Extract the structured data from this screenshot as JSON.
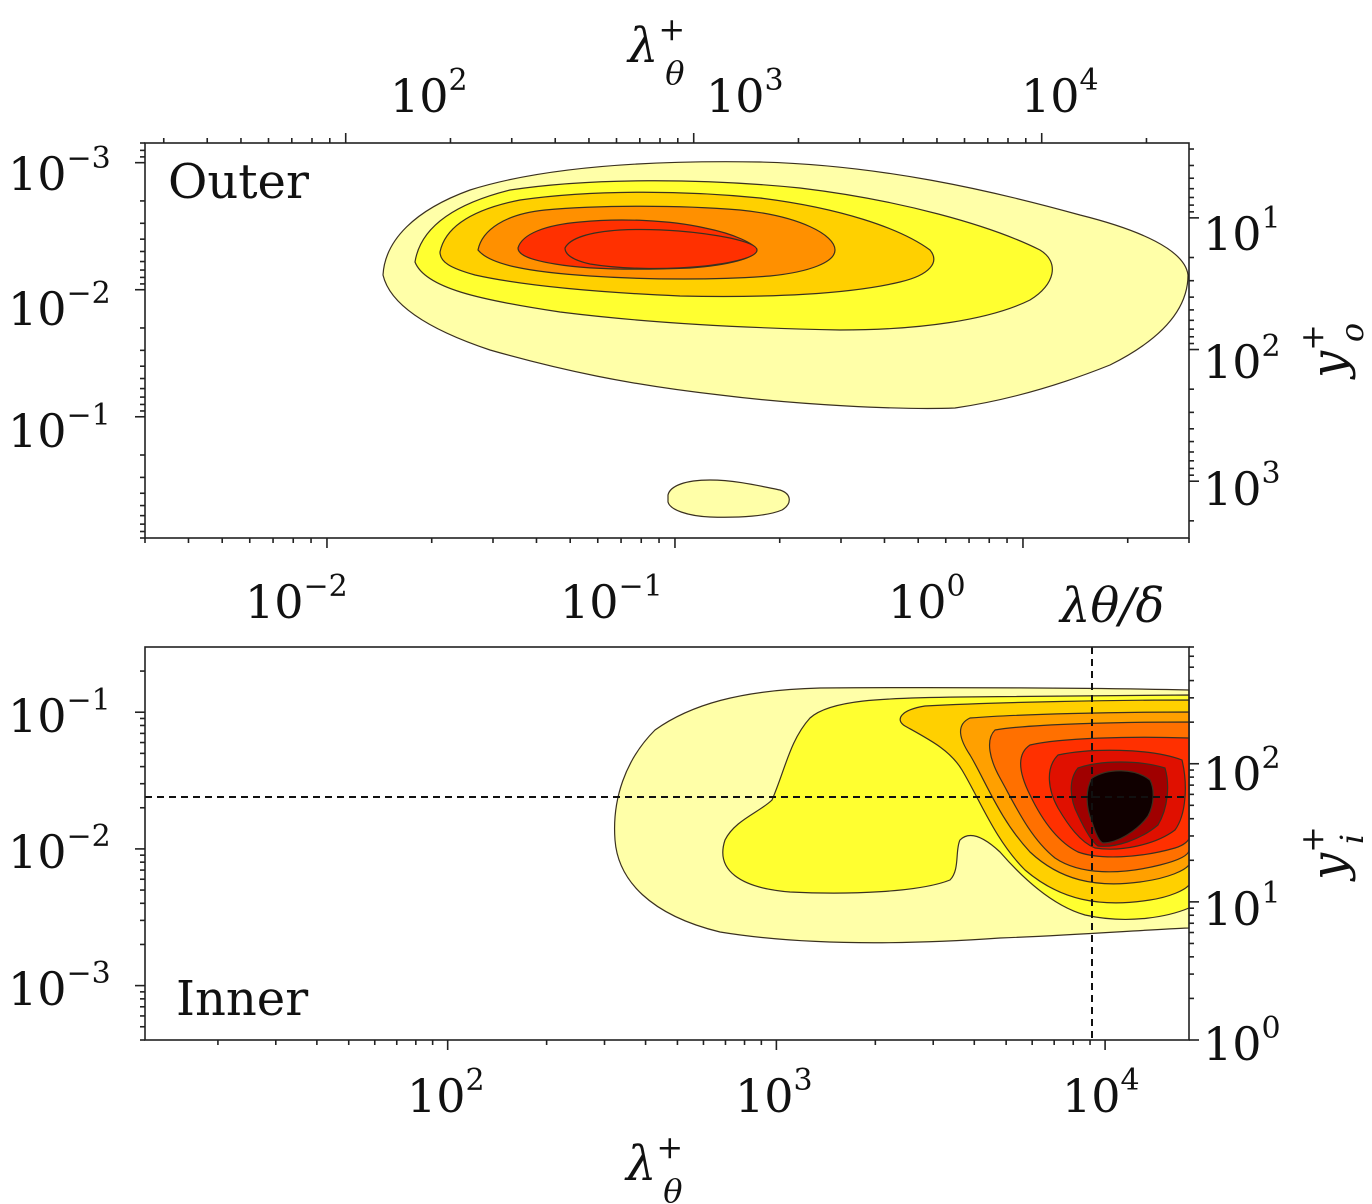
{
  "chart_data": [
    {
      "type": "heatmap",
      "panel_label": "Outer",
      "top_axis": {
        "label": "λθ+",
        "scale": "log",
        "range": [
          26.5,
          26500
        ],
        "ticks": [
          100,
          1000,
          10000
        ],
        "tick_labels": [
          "10^2",
          "10^3",
          "10^4"
        ]
      },
      "bottom_axis": {
        "label": "λθ/δ",
        "scale": "log",
        "range": [
          0.003,
          3.0
        ],
        "ticks": [
          0.01,
          0.1,
          1
        ],
        "tick_labels": [
          "10^-2",
          "10^-1",
          "10^0"
        ]
      },
      "left_axis": {
        "scale": "log",
        "inverted": true,
        "range": [
          0.0007,
          0.9
        ],
        "ticks": [
          0.001,
          0.01,
          0.1
        ],
        "tick_labels": [
          "10^-3",
          "10^-2",
          "10^-1"
        ]
      },
      "right_axis": {
        "label": "yo+",
        "scale": "log",
        "inverted": true,
        "range": [
          2.7,
          2700
        ],
        "ticks": [
          10,
          100,
          1000
        ],
        "tick_labels": [
          "10^1",
          "10^2",
          "10^3"
        ]
      },
      "contour_levels": 5,
      "colormap": [
        "#ffffa8",
        "#ffff30",
        "#ffd000",
        "#ff9000",
        "#ff3000"
      ],
      "peak": {
        "x": 0.12,
        "y": 0.0048
      },
      "secondary_island": {
        "x": 0.17,
        "y": 0.4
      }
    },
    {
      "type": "heatmap",
      "panel_label": "Inner",
      "bottom_axis": {
        "label": "λθ+",
        "scale": "log",
        "range": [
          12,
          18000
        ],
        "ticks": [
          100,
          1000,
          10000
        ],
        "tick_labels": [
          "10^2",
          "10^3",
          "10^4"
        ]
      },
      "left_axis": {
        "scale": "log",
        "range": [
          0.0004,
          0.3
        ],
        "ticks": [
          0.001,
          0.01,
          0.1
        ],
        "tick_labels": [
          "10^-3",
          "10^-2",
          "10^-1"
        ]
      },
      "right_axis": {
        "label": "yi+",
        "scale": "log",
        "range": [
          1,
          700
        ],
        "ticks": [
          1,
          10,
          100
        ],
        "tick_labels": [
          "10^0",
          "10^1",
          "10^2"
        ]
      },
      "contour_levels": 9,
      "colormap": [
        "#ffffa8",
        "#ffff30",
        "#ffd000",
        "#ffa000",
        "#ff7000",
        "#ff3000",
        "#e01000",
        "#a00000",
        "#500000",
        "#100000"
      ],
      "reference_lines": {
        "vertical_x": 9000,
        "horizontal_y": 0.025
      },
      "peak": {
        "x": 9500,
        "y": 0.025
      }
    }
  ],
  "outer": {
    "label": "Outer",
    "top": {
      "title_base": "λ",
      "title_sup": "+",
      "title_sub": "θ",
      "ticks": [
        {
          "b": "10",
          "e": "2"
        },
        {
          "b": "10",
          "e": "3"
        },
        {
          "b": "10",
          "e": "4"
        }
      ]
    },
    "bottom": {
      "title": "λθ/δ",
      "ticks": [
        {
          "b": "10",
          "e": "−2"
        },
        {
          "b": "10",
          "e": "−1"
        },
        {
          "b": "10",
          "e": "0"
        }
      ]
    },
    "left": {
      "ticks": [
        {
          "b": "10",
          "e": "−3"
        },
        {
          "b": "10",
          "e": "−2"
        },
        {
          "b": "10",
          "e": "−1"
        }
      ]
    },
    "right": {
      "title_base": "y",
      "title_sup": "+",
      "title_sub": "o",
      "ticks": [
        {
          "b": "10",
          "e": "1"
        },
        {
          "b": "10",
          "e": "2"
        },
        {
          "b": "10",
          "e": "3"
        }
      ]
    }
  },
  "inner": {
    "label": "Inner",
    "bottom": {
      "title_base": "λ",
      "title_sup": "+",
      "title_sub": "θ",
      "ticks": [
        {
          "b": "10",
          "e": "2"
        },
        {
          "b": "10",
          "e": "3"
        },
        {
          "b": "10",
          "e": "4"
        }
      ]
    },
    "left": {
      "ticks": [
        {
          "b": "10",
          "e": "−1"
        },
        {
          "b": "10",
          "e": "−2"
        },
        {
          "b": "10",
          "e": "−3"
        }
      ]
    },
    "right": {
      "title_base": "y",
      "title_sup": "+",
      "title_sub": "i",
      "ticks": [
        {
          "b": "10",
          "e": "2"
        },
        {
          "b": "10",
          "e": "1"
        },
        {
          "b": "10",
          "e": "0"
        }
      ]
    }
  }
}
